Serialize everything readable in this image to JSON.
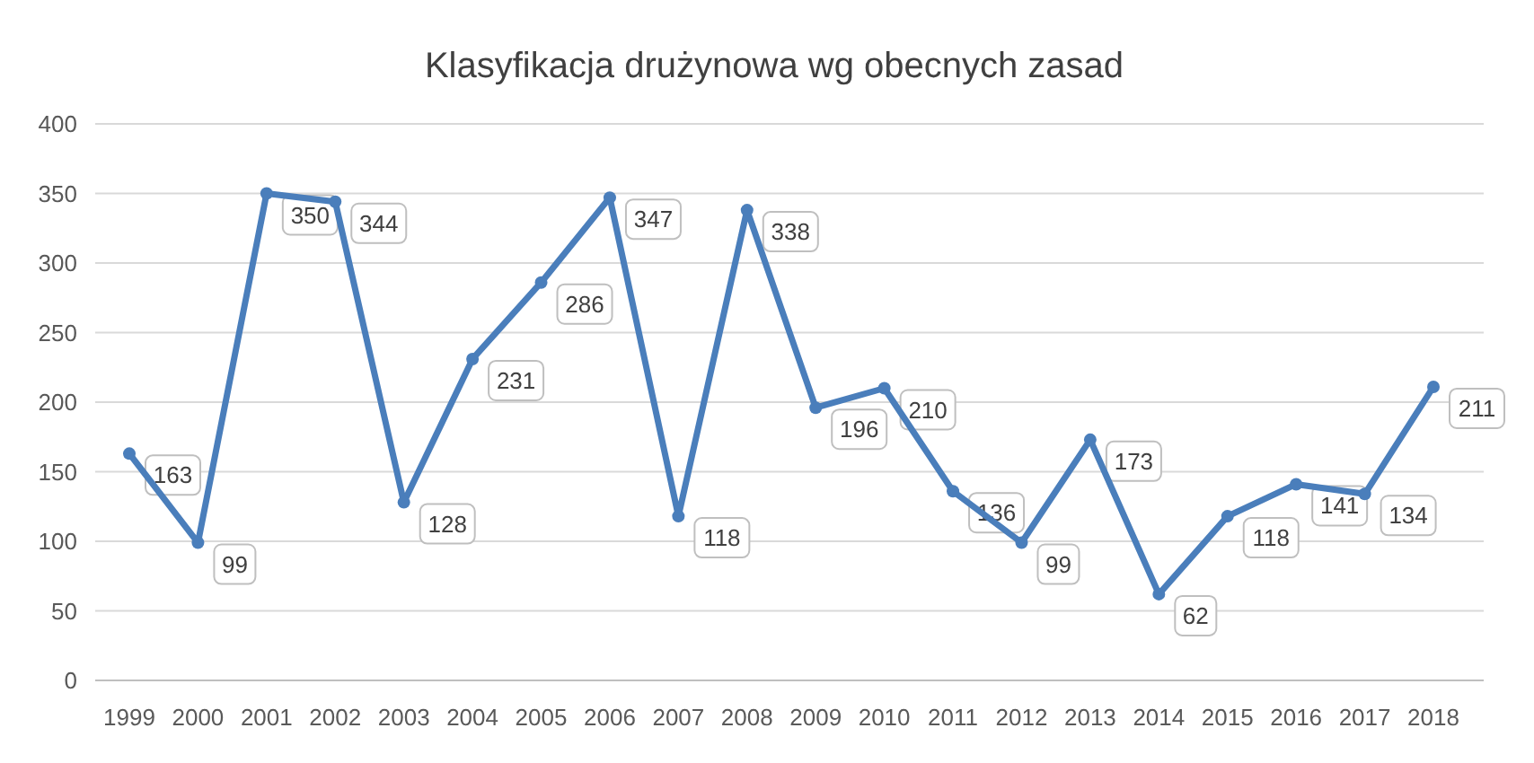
{
  "chart_data": {
    "type": "line",
    "title": "Klasyfikacja drużynowa wg obecnych zasad",
    "categories": [
      "1999",
      "2000",
      "2001",
      "2002",
      "2003",
      "2004",
      "2005",
      "2006",
      "2007",
      "2008",
      "2009",
      "2010",
      "2011",
      "2012",
      "2013",
      "2014",
      "2015",
      "2016",
      "2017",
      "2018"
    ],
    "series": [
      {
        "color": "#4a7ebb",
        "values": [
          163,
          99,
          350,
          344,
          128,
          231,
          286,
          347,
          118,
          338,
          196,
          210,
          136,
          99,
          173,
          62,
          118,
          141,
          134,
          211
        ]
      }
    ],
    "ylim": [
      0,
      400
    ],
    "yticks": [
      0,
      50,
      100,
      150,
      200,
      250,
      300,
      350,
      400
    ],
    "grid": "y",
    "marker": "circle",
    "line_style": "solid",
    "data_labels": true
  }
}
